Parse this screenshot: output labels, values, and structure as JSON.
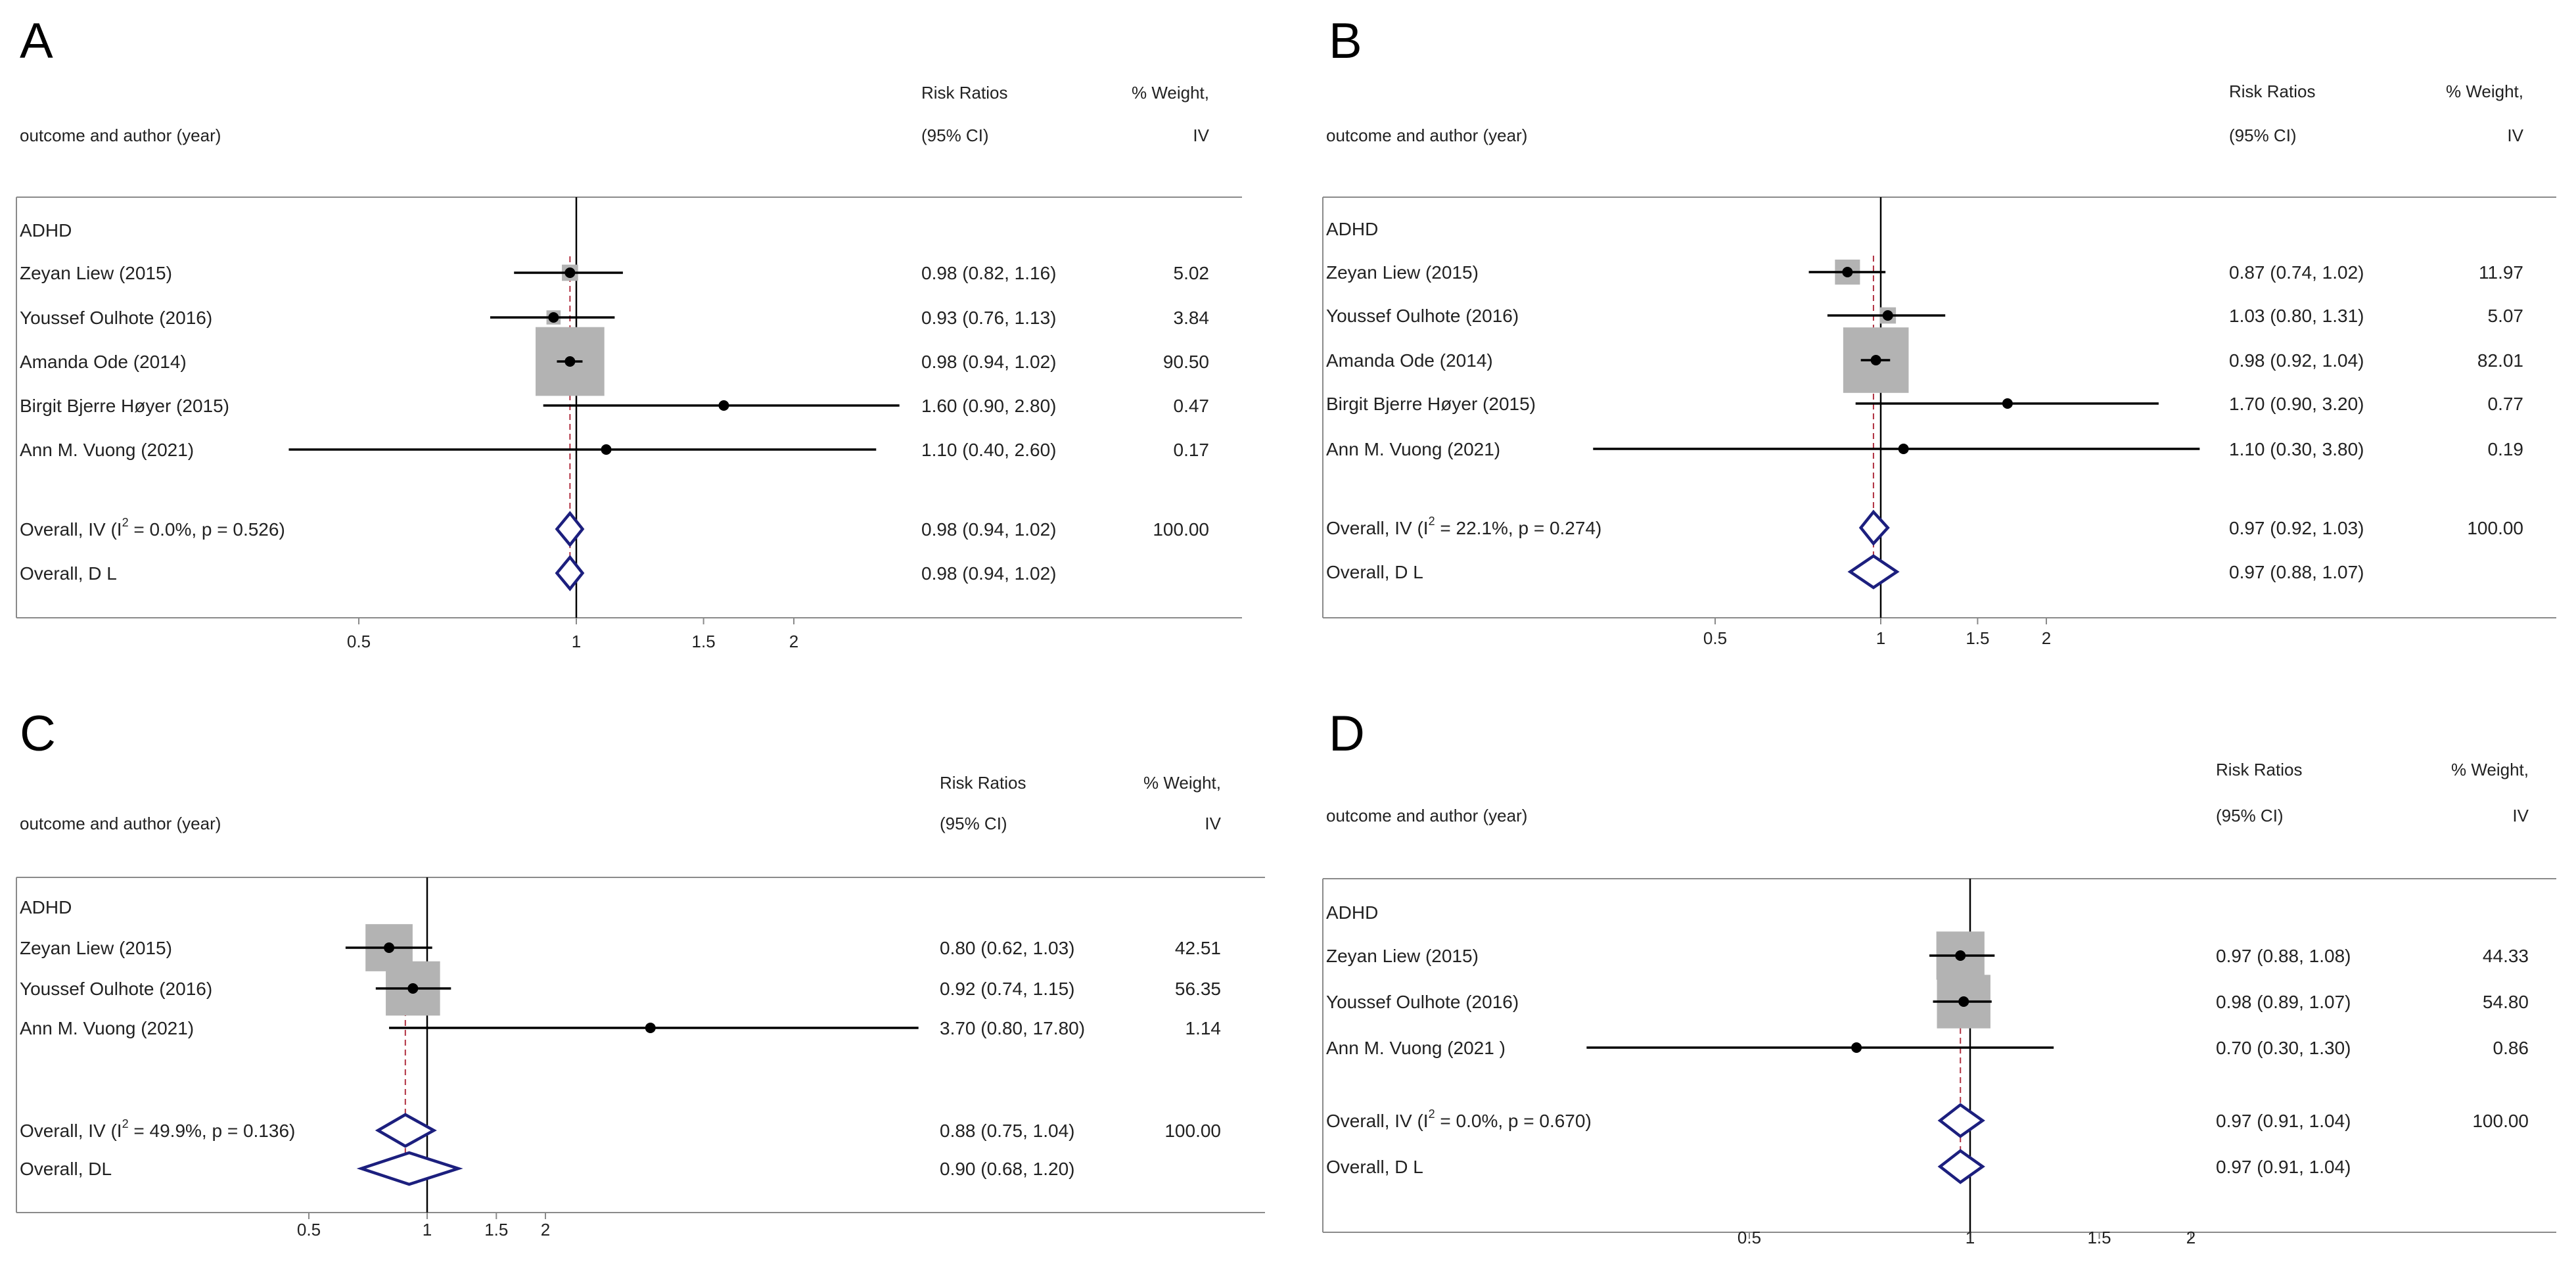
{
  "chart_data": [
    {
      "type": "forest",
      "panel": "A",
      "header_label": "outcome and author (year)",
      "header_rr": [
        "Risk Ratios",
        "(95% CI)"
      ],
      "header_weight": [
        "% Weight,",
        "IV"
      ],
      "group": "ADHD",
      "xticks": [
        0.5,
        1,
        1.5,
        2
      ],
      "xtick_labels": [
        "0.5",
        "1",
        "1.5",
        "2"
      ],
      "studies": [
        {
          "label": "Zeyan Liew (2015)",
          "rr": 0.98,
          "lo": 0.82,
          "hi": 1.16,
          "rr_text": "0.98 (0.82, 1.16)",
          "weight": "5.02"
        },
        {
          "label": "Youssef Oulhote (2016)",
          "rr": 0.93,
          "lo": 0.76,
          "hi": 1.13,
          "rr_text": "0.93 (0.76, 1.13)",
          "weight": "3.84"
        },
        {
          "label": "Amanda Ode (2014)",
          "rr": 0.98,
          "lo": 0.94,
          "hi": 1.02,
          "rr_text": "0.98 (0.94, 1.02)",
          "weight": "90.50"
        },
        {
          "label": "Birgit Bjerre Høyer (2015)",
          "rr": 1.6,
          "lo": 0.9,
          "hi": 2.8,
          "rr_text": "1.60 (0.90, 2.80)",
          "weight": "0.47"
        },
        {
          "label": "Ann M. Vuong (2021)",
          "rr": 1.1,
          "lo": 0.4,
          "hi": 2.6,
          "rr_text": "1.10 (0.40, 2.60)",
          "weight": "0.17"
        }
      ],
      "overall": [
        {
          "label_pre": "Overall, IV (I",
          "label_sup": "2",
          "label_post": " = 0.0%, p = 0.526)",
          "rr": 0.98,
          "lo": 0.94,
          "hi": 1.02,
          "rr_text": "0.98 (0.94, 1.02)",
          "weight": "100.00"
        },
        {
          "label_pre": "Overall, D L",
          "label_sup": "",
          "label_post": "",
          "rr": 0.98,
          "lo": 0.94,
          "hi": 1.02,
          "rr_text": "0.98 (0.94, 1.02)",
          "weight": ""
        }
      ]
    },
    {
      "type": "forest",
      "panel": "B",
      "header_label": "outcome and author (year)",
      "header_rr": [
        "Risk Ratios",
        "(95% CI)"
      ],
      "header_weight": [
        "% Weight,",
        "IV"
      ],
      "group": "ADHD",
      "xticks": [
        0.5,
        1,
        1.5,
        2
      ],
      "xtick_labels": [
        "0.5",
        "1",
        "1.5",
        "2"
      ],
      "studies": [
        {
          "label": "Zeyan Liew (2015)",
          "rr": 0.87,
          "lo": 0.74,
          "hi": 1.02,
          "rr_text": "0.87 (0.74, 1.02)",
          "weight": "11.97"
        },
        {
          "label": "Youssef Oulhote (2016)",
          "rr": 1.03,
          "lo": 0.8,
          "hi": 1.31,
          "rr_text": "1.03 (0.80, 1.31)",
          "weight": "5.07"
        },
        {
          "label": "Amanda Ode (2014)",
          "rr": 0.98,
          "lo": 0.92,
          "hi": 1.04,
          "rr_text": "0.98 (0.92, 1.04)",
          "weight": "82.01"
        },
        {
          "label": "Birgit Bjerre Høyer (2015)",
          "rr": 1.7,
          "lo": 0.9,
          "hi": 3.2,
          "rr_text": "1.70 (0.90, 3.20)",
          "weight": "0.77"
        },
        {
          "label": "Ann M. Vuong (2021)",
          "rr": 1.1,
          "lo": 0.3,
          "hi": 3.8,
          "rr_text": "1.10 (0.30, 3.80)",
          "weight": "0.19"
        }
      ],
      "overall": [
        {
          "label_pre": "Overall, IV (I",
          "label_sup": "2",
          "label_post": " = 22.1%, p = 0.274)",
          "rr": 0.97,
          "lo": 0.92,
          "hi": 1.03,
          "rr_text": "0.97 (0.92, 1.03)",
          "weight": "100.00"
        },
        {
          "label_pre": "Overall, D L",
          "label_sup": "",
          "label_post": "",
          "rr": 0.97,
          "lo": 0.88,
          "hi": 1.07,
          "rr_text": "0.97 (0.88, 1.07)",
          "weight": ""
        }
      ]
    },
    {
      "type": "forest",
      "panel": "C",
      "header_label": "outcome and author (year)",
      "header_rr": [
        "Risk Ratios",
        "(95% CI)"
      ],
      "header_weight": [
        "% Weight,",
        "IV"
      ],
      "group": "ADHD",
      "xticks": [
        0.5,
        1,
        1.5,
        2
      ],
      "xtick_labels": [
        "0.5",
        "1",
        "1.5",
        "2"
      ],
      "studies": [
        {
          "label": "Zeyan Liew (2015)",
          "rr": 0.8,
          "lo": 0.62,
          "hi": 1.03,
          "rr_text": "0.80 (0.62, 1.03)",
          "weight": "42.51"
        },
        {
          "label": "Youssef Oulhote (2016)",
          "rr": 0.92,
          "lo": 0.74,
          "hi": 1.15,
          "rr_text": "0.92 (0.74, 1.15)",
          "weight": "56.35"
        },
        {
          "label": "Ann M. Vuong (2021)",
          "rr": 3.7,
          "lo": 0.8,
          "hi": 17.8,
          "rr_text": "3.70 (0.80, 17.80)",
          "weight": "1.14"
        }
      ],
      "overall": [
        {
          "label_pre": "Overall, IV (I",
          "label_sup": "2",
          "label_post": " = 49.9%, p = 0.136)",
          "rr": 0.88,
          "lo": 0.75,
          "hi": 1.04,
          "rr_text": "0.88 (0.75, 1.04)",
          "weight": "100.00"
        },
        {
          "label_pre": "Overall, DL",
          "label_sup": "",
          "label_post": "",
          "rr": 0.9,
          "lo": 0.68,
          "hi": 1.2,
          "rr_text": "0.90 (0.68, 1.20)",
          "weight": ""
        }
      ]
    },
    {
      "type": "forest",
      "panel": "D",
      "header_label": "outcome and author (year)",
      "header_rr": [
        "Risk Ratios",
        "(95% CI)"
      ],
      "header_weight": [
        "% Weight,",
        "IV"
      ],
      "group": "ADHD",
      "xticks": [
        0.5,
        1,
        1.5,
        2
      ],
      "xtick_labels": [
        "0.5",
        "1",
        "1.5",
        "2"
      ],
      "studies": [
        {
          "label": "Zeyan Liew (2015)",
          "rr": 0.97,
          "lo": 0.88,
          "hi": 1.08,
          "rr_text": "0.97 (0.88, 1.08)",
          "weight": "44.33"
        },
        {
          "label": "Youssef Oulhote (2016)",
          "rr": 0.98,
          "lo": 0.89,
          "hi": 1.07,
          "rr_text": "0.98 (0.89, 1.07)",
          "weight": "54.80"
        },
        {
          "label": "Ann M. Vuong (2021 )",
          "rr": 0.7,
          "lo": 0.3,
          "hi": 1.3,
          "rr_text": "0.70 (0.30, 1.30)",
          "weight": "0.86"
        }
      ],
      "overall": [
        {
          "label_pre": "Overall, IV (I",
          "label_sup": "2",
          "label_post": " = 0.0%, p = 0.670)",
          "rr": 0.97,
          "lo": 0.91,
          "hi": 1.04,
          "rr_text": "0.97 (0.91, 1.04)",
          "weight": "100.00"
        },
        {
          "label_pre": "Overall, D L",
          "label_sup": "",
          "label_post": "",
          "rr": 0.97,
          "lo": 0.91,
          "hi": 1.04,
          "rr_text": "0.97 (0.91, 1.04)",
          "weight": ""
        }
      ]
    }
  ]
}
